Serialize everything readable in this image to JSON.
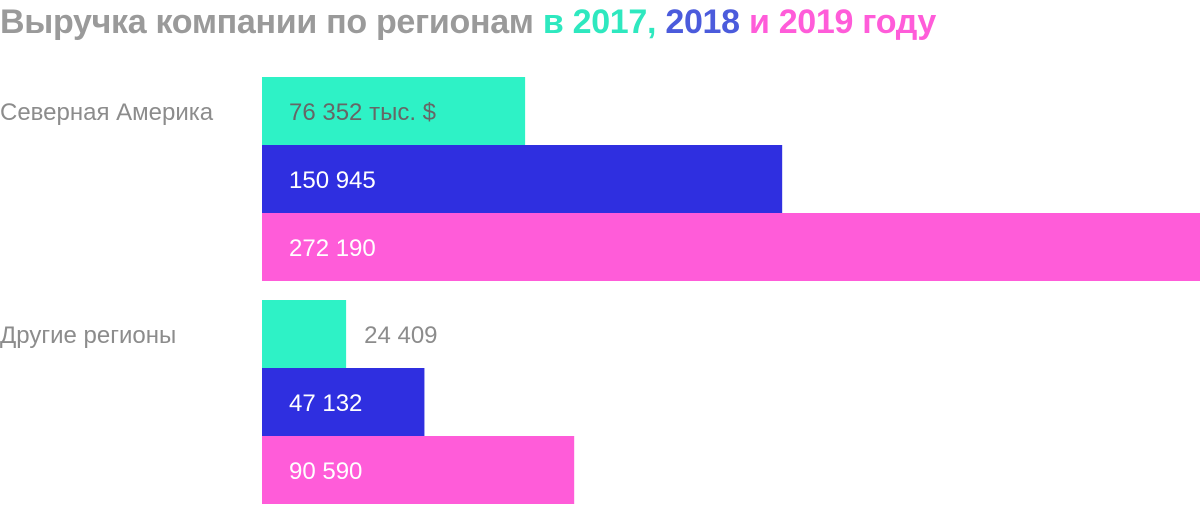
{
  "title": {
    "prefix": "Выручка компании по регионам",
    "in": "в",
    "year_2017": "2017",
    "comma": ",",
    "year_2018": "2018",
    "and": "и",
    "year_2019": "2019",
    "suffix": "году"
  },
  "colors": {
    "title_gray": "#9a9a9a",
    "label_gray": "#8c8c8c",
    "series_2017": "#2ef2c6",
    "series_2018": "#2f2fe0",
    "series_2019": "#ff5cd9",
    "title_2018": "#4b5bdc"
  },
  "chart_data": {
    "type": "bar",
    "orientation": "horizontal",
    "categories": [
      "Северная Америка",
      "Другие регионы"
    ],
    "series": [
      {
        "name": "2017",
        "values": [
          76352,
          24409
        ],
        "labels": [
          "76 352 тыс. $",
          "24 409"
        ]
      },
      {
        "name": "2018",
        "values": [
          150945,
          47132
        ],
        "labels": [
          "150 945",
          "47 132"
        ]
      },
      {
        "name": "2019",
        "values": [
          272190,
          90590
        ],
        "labels": [
          "272 190",
          "90 590"
        ]
      }
    ],
    "unit": "тыс. $",
    "xlim": [
      0,
      272190
    ],
    "grid": false,
    "legend": "title"
  }
}
